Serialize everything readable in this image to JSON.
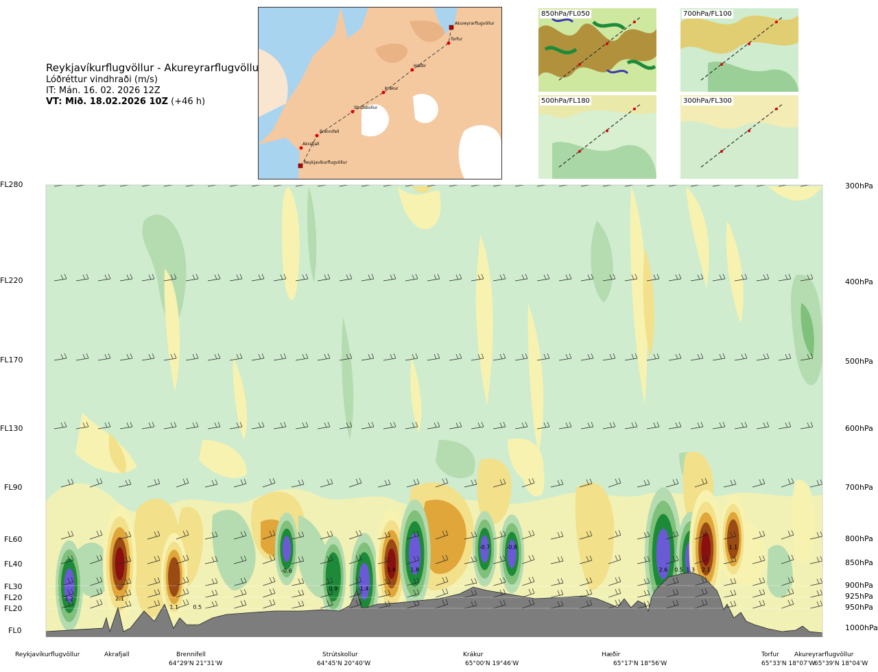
{
  "header": {
    "route": "Reykjavíkurflugvöllur - Akureyrarflugvöllur",
    "parameter": "Lóðréttur vindhraði (m/s)",
    "it": "IT: Mán. 16. 02. 2026 12Z",
    "vt_bold": "VT: Mið. 18.02.2026 10Z",
    "vt_lead": "(+46 h)"
  },
  "map": {
    "waypoints": [
      "Reykjavíkurflugvöllur",
      "Akrafjall",
      "Brennifell",
      "Strútskollur",
      "Krákur",
      "Hæðir",
      "Torfur",
      "Akureyrarflugvöllur"
    ]
  },
  "panels": [
    {
      "label": "850hPa/FL050"
    },
    {
      "label": "700hPa/FL100"
    },
    {
      "label": "500hPa/FL180"
    },
    {
      "label": "300hPa/FL300"
    }
  ],
  "levels": [
    {
      "fl": "FL280",
      "hpa": "300hPa"
    },
    {
      "fl": "FL220",
      "hpa": "400hPa"
    },
    {
      "fl": "FL170",
      "hpa": "500hPa"
    },
    {
      "fl": "FL130",
      "hpa": "600hPa"
    },
    {
      "fl": "FL90",
      "hpa": "700hPa"
    },
    {
      "fl": "FL60",
      "hpa": "800hPa"
    },
    {
      "fl": "FL40",
      "hpa": "850hPa"
    },
    {
      "fl": "FL30",
      "hpa": "900hPa"
    },
    {
      "fl": "FL20",
      "hpa": "925hPa"
    },
    {
      "fl": "FL20",
      "hpa": "950hPa"
    },
    {
      "fl": "FL0",
      "hpa": "1000hPa"
    }
  ],
  "locations": [
    {
      "name": "Reykjavíkurflugvöllur",
      "coord": ""
    },
    {
      "name": "Akrafjall",
      "coord": ""
    },
    {
      "name": "Brennifell",
      "coord": "64°29'N 21°31'W"
    },
    {
      "name": "Strútskollur",
      "coord": "64°45'N 20°40'W"
    },
    {
      "name": "Krákur",
      "coord": "65°00'N 19°46'W"
    },
    {
      "name": "Hæðir",
      "coord": "65°17'N 18°56'W"
    },
    {
      "name": "Torfur",
      "coord": "65°33'N 18°07'W"
    },
    {
      "name": "Akureyrarflugvöllur",
      "coord": "65°39'N 18°04'W"
    }
  ],
  "chart_data": {
    "type": "heatmap",
    "title": "Lóðréttur vindhraði (m/s)",
    "x_axis": "route distance Reykjavíkurflugvöllur → Akureyrarflugvöllur",
    "y_axis": "pressure level (hPa) / flight level",
    "y_levels_hpa": [
      300,
      400,
      500,
      600,
      700,
      800,
      850,
      900,
      925,
      950,
      1000
    ],
    "annotations": [
      {
        "value": "1.2",
        "route_frac": 0.03,
        "hpa": 932
      },
      {
        "value": "2.1",
        "route_frac": 0.095,
        "hpa": 932
      },
      {
        "value": "1.1",
        "route_frac": 0.165,
        "hpa": 952
      },
      {
        "value": "0.5",
        "route_frac": 0.195,
        "hpa": 952
      },
      {
        "value": "-0.6",
        "route_frac": 0.31,
        "hpa": 870
      },
      {
        "value": "0.9",
        "route_frac": 0.37,
        "hpa": 910
      },
      {
        "value": "1.4",
        "route_frac": 0.41,
        "hpa": 910
      },
      {
        "value": "1.8",
        "route_frac": 0.445,
        "hpa": 868
      },
      {
        "value": "1.8",
        "route_frac": 0.475,
        "hpa": 868
      },
      {
        "value": "-0.7",
        "route_frac": 0.565,
        "hpa": 820
      },
      {
        "value": "-0.8",
        "route_frac": 0.6,
        "hpa": 820
      },
      {
        "value": "2.6",
        "route_frac": 0.795,
        "hpa": 868
      },
      {
        "value": "0.5",
        "route_frac": 0.815,
        "hpa": 868
      },
      {
        "value": "1.3",
        "route_frac": 0.83,
        "hpa": 868
      },
      {
        "value": "2.1",
        "route_frac": 0.85,
        "hpa": 868
      },
      {
        "value": "1.1",
        "route_frac": 0.885,
        "hpa": 820
      }
    ],
    "cells": [
      {
        "route_frac": 0.03,
        "hpa": 900,
        "w": 1.2
      },
      {
        "route_frac": 0.095,
        "hpa": 850,
        "w": 2.1
      },
      {
        "route_frac": 0.165,
        "hpa": 880,
        "w": 1.1
      },
      {
        "route_frac": 0.31,
        "hpa": 820,
        "w": -0.6
      },
      {
        "route_frac": 0.37,
        "hpa": 880,
        "w": 0.9
      },
      {
        "route_frac": 0.41,
        "hpa": 890,
        "w": 1.4
      },
      {
        "route_frac": 0.445,
        "hpa": 850,
        "w": 1.8
      },
      {
        "route_frac": 0.475,
        "hpa": 830,
        "w": 1.8
      },
      {
        "route_frac": 0.565,
        "hpa": 820,
        "w": -0.7
      },
      {
        "route_frac": 0.6,
        "hpa": 830,
        "w": -0.8
      },
      {
        "route_frac": 0.795,
        "hpa": 830,
        "w": 2.6
      },
      {
        "route_frac": 0.83,
        "hpa": 840,
        "w": 1.3
      },
      {
        "route_frac": 0.85,
        "hpa": 820,
        "w": 2.1
      },
      {
        "route_frac": 0.885,
        "hpa": 800,
        "w": 1.1
      }
    ],
    "colors": {
      "background": "#cfeccf",
      "light_yellow": "#f7f2b0",
      "yellow": "#f2e08a",
      "orange": "#e0a63a",
      "brown": "#9a4a14",
      "dark_red": "#8a1010",
      "light_green": "#b5dcb0",
      "green": "#7fc07a",
      "dark_green": "#1d8a3a",
      "blue": "#6a5ad6",
      "terrain": "#7d7d7d"
    }
  }
}
